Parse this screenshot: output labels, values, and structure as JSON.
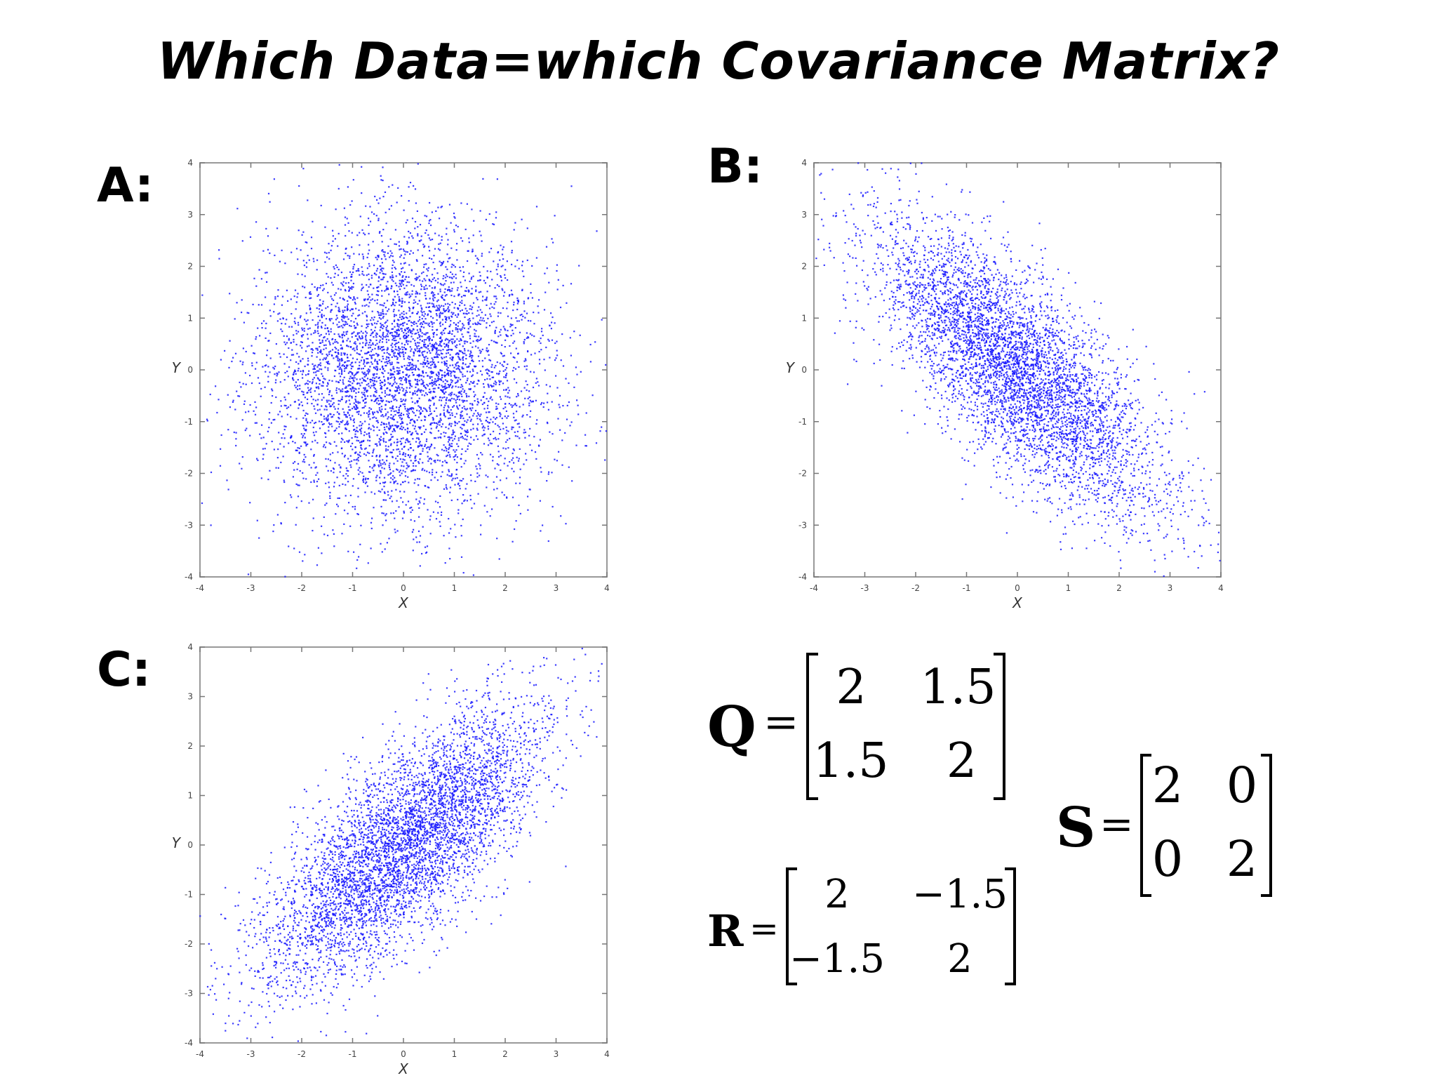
{
  "title": "Which Data=which Covariance Matrix?",
  "panels": [
    {
      "id": "A",
      "label": "A:"
    },
    {
      "id": "B",
      "label": "B:"
    },
    {
      "id": "C",
      "label": "C:"
    }
  ],
  "point_color": "#1a1aff",
  "chart_data": [
    {
      "type": "scatter",
      "panel": "A",
      "xlabel": "X",
      "ylabel": "Y",
      "xlim": [
        -4,
        4
      ],
      "ylim": [
        -4,
        4
      ],
      "xticks": [
        "-4",
        "-3",
        "-2",
        "-1",
        "0",
        "1",
        "2",
        "3",
        "4"
      ],
      "yticks": [
        "-4",
        "-3",
        "-2",
        "-1",
        "0",
        "1",
        "2",
        "3",
        "4"
      ],
      "distribution": {
        "mean": [
          0,
          0
        ],
        "covariance": [
          [
            2,
            0
          ],
          [
            0,
            2
          ]
        ],
        "n_points": 5000
      }
    },
    {
      "type": "scatter",
      "panel": "B",
      "xlabel": "X",
      "ylabel": "Y",
      "xlim": [
        -4,
        4
      ],
      "ylim": [
        -4,
        4
      ],
      "xticks": [
        "-4",
        "-3",
        "-2",
        "-1",
        "0",
        "1",
        "2",
        "3",
        "4"
      ],
      "yticks": [
        "-4",
        "-3",
        "-2",
        "-1",
        "0",
        "1",
        "2",
        "3",
        "4"
      ],
      "distribution": {
        "mean": [
          0,
          0
        ],
        "covariance": [
          [
            2,
            -1.5
          ],
          [
            -1.5,
            2
          ]
        ],
        "n_points": 5000
      }
    },
    {
      "type": "scatter",
      "panel": "C",
      "xlabel": "X",
      "ylabel": "Y",
      "xlim": [
        -4,
        4
      ],
      "ylim": [
        -4,
        4
      ],
      "xticks": [
        "-4",
        "-3",
        "-2",
        "-1",
        "0",
        "1",
        "2",
        "3",
        "4"
      ],
      "yticks": [
        "-4",
        "-3",
        "-2",
        "-1",
        "0",
        "1",
        "2",
        "3",
        "4"
      ],
      "distribution": {
        "mean": [
          0,
          0
        ],
        "covariance": [
          [
            2,
            1.5
          ],
          [
            1.5,
            2
          ]
        ],
        "n_points": 5000
      }
    }
  ],
  "matrices": {
    "Q": {
      "name": "Q",
      "eq": "=",
      "cells": [
        [
          "2",
          "1.5"
        ],
        [
          "1.5",
          "2"
        ]
      ]
    },
    "R": {
      "name": "R",
      "eq": "=",
      "cells": [
        [
          "2",
          "−1.5"
        ],
        [
          "−1.5",
          "2"
        ]
      ]
    },
    "S": {
      "name": "S",
      "eq": "=",
      "cells": [
        [
          "2",
          "0"
        ],
        [
          "0",
          "2"
        ]
      ]
    }
  }
}
